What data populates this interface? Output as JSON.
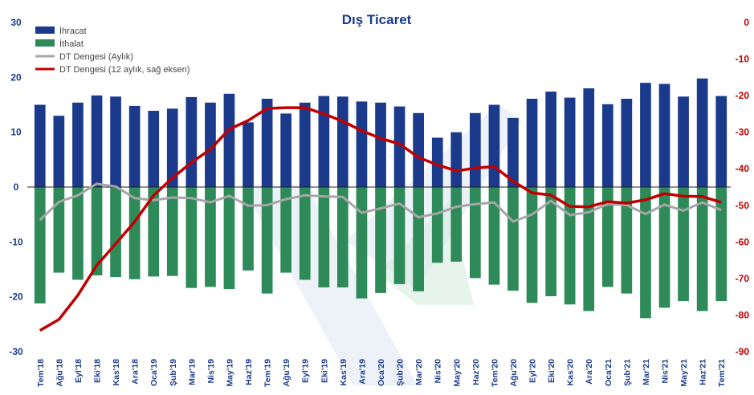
{
  "chart_data": {
    "type": "bar",
    "title": "Dış Ticaret",
    "categories": [
      "Tem'18",
      "Ağu'18",
      "Eyl'18",
      "Eki'18",
      "Kas'18",
      "Ara'18",
      "Oca'19",
      "Şub'19",
      "Mar'19",
      "Nis'19",
      "May'19",
      "Haz'19",
      "Tem'19",
      "Ağu'19",
      "Eyl'19",
      "Eki'19",
      "Kas'19",
      "Ara'19",
      "Oca'20",
      "Şub'20",
      "Mar'20",
      "Nis'20",
      "May'20",
      "Haz'20",
      "Tem'20",
      "Ağu'20",
      "Eyl'20",
      "Eki'20",
      "Kas'20",
      "Ara'20",
      "Oca'21",
      "Şub'21",
      "Mar'21",
      "Nis'21",
      "May'21",
      "Haz'21",
      "Tem'21"
    ],
    "left_axis": {
      "ylim": [
        -30,
        30
      ],
      "ticks": [
        30,
        20,
        10,
        0,
        -10,
        -20,
        -30
      ]
    },
    "right_axis": {
      "ylim": [
        -90,
        0
      ],
      "ticks": [
        0,
        -10,
        -20,
        -30,
        -40,
        -50,
        -60,
        -70,
        -80,
        -90
      ]
    },
    "legend": [
      "İhracat",
      "İthalat",
      "DT Dengesi (Aylık)",
      "DT Dengesi (12 aylık, sağ eksen)"
    ],
    "legend_position": "top-left",
    "grid": false,
    "series": [
      {
        "name": "İhracat",
        "kind": "bar",
        "axis": "left",
        "color": "#1b3a8c",
        "values": [
          15.0,
          13.0,
          15.4,
          16.7,
          16.5,
          14.8,
          13.9,
          14.3,
          16.4,
          15.4,
          17.0,
          11.8,
          16.1,
          13.4,
          15.4,
          16.6,
          16.5,
          15.6,
          15.4,
          14.7,
          13.5,
          9.0,
          10.0,
          13.5,
          15.0,
          12.6,
          16.1,
          17.4,
          16.3,
          18.0,
          15.1,
          16.1,
          19.0,
          18.8,
          16.5,
          19.8,
          16.6
        ]
      },
      {
        "name": "İthalat",
        "kind": "bar",
        "axis": "left",
        "color": "#2f8a5a",
        "values": [
          -21.2,
          -15.6,
          -16.9,
          -16.1,
          -16.4,
          -16.8,
          -16.3,
          -16.2,
          -18.4,
          -18.2,
          -18.6,
          -15.2,
          -19.4,
          -15.6,
          -16.9,
          -18.3,
          -18.3,
          -20.3,
          -19.3,
          -17.7,
          -19.0,
          -13.8,
          -13.6,
          -16.6,
          -17.8,
          -18.9,
          -21.1,
          -19.9,
          -21.4,
          -22.6,
          -18.2,
          -19.4,
          -23.9,
          -22.0,
          -20.8,
          -22.6,
          -20.8
        ]
      },
      {
        "name": "DT Dengesi (Aylık)",
        "kind": "line",
        "axis": "left",
        "color": "#a6a6a6",
        "values": [
          -6.0,
          -2.7,
          -1.5,
          0.6,
          0.1,
          -2.0,
          -2.4,
          -1.9,
          -2.0,
          -2.8,
          -1.6,
          -3.4,
          -3.3,
          -2.2,
          -1.5,
          -1.7,
          -1.8,
          -4.7,
          -3.9,
          -3.0,
          -5.5,
          -4.8,
          -3.6,
          -3.1,
          -2.8,
          -6.3,
          -5.0,
          -2.5,
          -5.1,
          -4.6,
          -3.1,
          -3.3,
          -4.9,
          -3.2,
          -4.3,
          -2.8,
          -4.2
        ]
      },
      {
        "name": "DT Dengesi (12 aylık, sağ eksen)",
        "kind": "line",
        "axis": "right",
        "color": "#c00000",
        "values": [
          -84.2,
          -81.2,
          -74.6,
          -66.4,
          -60.5,
          -54.5,
          -47.3,
          -42.5,
          -38.3,
          -34.7,
          -29.2,
          -26.8,
          -23.5,
          -23.3,
          -23.3,
          -25.0,
          -27.0,
          -29.6,
          -31.7,
          -33.2,
          -36.9,
          -38.9,
          -40.6,
          -39.8,
          -39.4,
          -43.4,
          -46.6,
          -47.2,
          -50.3,
          -50.4,
          -49.0,
          -49.4,
          -48.5,
          -46.8,
          -47.5,
          -47.6,
          -49.2
        ]
      }
    ]
  }
}
